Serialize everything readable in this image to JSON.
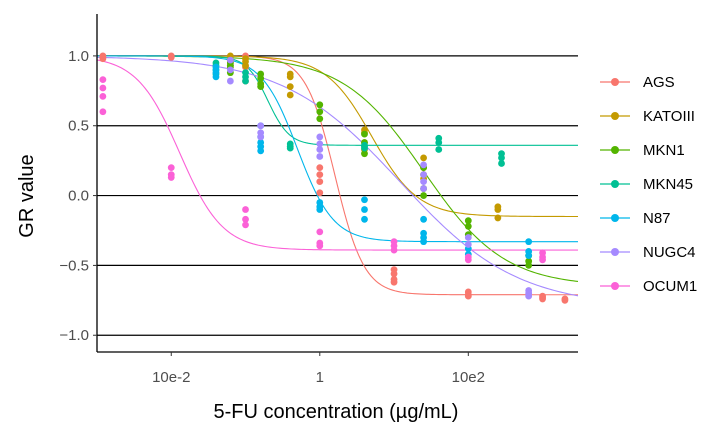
{
  "chart_data": {
    "type": "scatter",
    "xlabel": "5-FU concentration (µg/mL)",
    "ylabel": "GR value",
    "x_scale": "log10",
    "xlim": [
      0.001,
      3000
    ],
    "ylim": [
      -1.12,
      1.3
    ],
    "x_ticks": [
      {
        "value": 0.01,
        "label": "10e-2"
      },
      {
        "value": 1,
        "label": "1"
      },
      {
        "value": 100,
        "label": "10e2"
      }
    ],
    "y_ticks": [
      {
        "value": 1,
        "label": "1.0"
      },
      {
        "value": 0.5,
        "label": "0.5"
      },
      {
        "value": 0,
        "label": "0.0"
      },
      {
        "value": -0.5,
        "label": "−0.5"
      },
      {
        "value": -1,
        "label": "−1.0"
      }
    ],
    "hlines": [
      1,
      0.5,
      0,
      -0.5,
      -1
    ],
    "legend_position": "right",
    "series": [
      {
        "name": "AGS",
        "color": "#F8766D",
        "fit": {
          "ginf": -0.71,
          "gec50": 1.6,
          "h": 2.2
        },
        "points": [
          [
            0.0012,
            1.0
          ],
          [
            0.0012,
            0.99
          ],
          [
            0.0012,
            0.98
          ],
          [
            0.01,
            1.0
          ],
          [
            0.01,
            0.99
          ],
          [
            0.0625,
            0.97
          ],
          [
            0.0625,
            0.96
          ],
          [
            0.0625,
            0.95
          ],
          [
            0.1,
            1.0
          ],
          [
            0.1,
            0.92
          ],
          [
            0.1,
            0.82
          ],
          [
            1,
            0.2
          ],
          [
            1,
            0.15
          ],
          [
            1,
            0.1
          ],
          [
            1,
            0.02
          ],
          [
            10,
            -0.53
          ],
          [
            10,
            -0.56
          ],
          [
            10,
            -0.6
          ],
          [
            10,
            -0.62
          ],
          [
            100,
            -0.69
          ],
          [
            100,
            -0.71
          ],
          [
            100,
            -0.72
          ],
          [
            1000,
            -0.72
          ],
          [
            1000,
            -0.73
          ],
          [
            1000,
            -0.74
          ],
          [
            2000,
            -0.74
          ],
          [
            2000,
            -0.75
          ]
        ]
      },
      {
        "name": "KATOIII",
        "color": "#C49A00",
        "fit": {
          "ginf": -0.15,
          "gec50": 5,
          "h": 1.4
        },
        "points": [
          [
            0.0625,
            1.0
          ],
          [
            0.0625,
            0.97
          ],
          [
            0.0625,
            0.93
          ],
          [
            0.1,
            0.98
          ],
          [
            0.1,
            0.96
          ],
          [
            0.1,
            0.93
          ],
          [
            0.4,
            0.87
          ],
          [
            0.4,
            0.85
          ],
          [
            0.4,
            0.78
          ],
          [
            0.4,
            0.72
          ],
          [
            4,
            0.47
          ],
          [
            4,
            0.45
          ],
          [
            4,
            0.38
          ],
          [
            4,
            0.33
          ],
          [
            25,
            0.27
          ],
          [
            25,
            0.2
          ],
          [
            25,
            0.15
          ],
          [
            25,
            0.12
          ],
          [
            250,
            -0.08
          ],
          [
            250,
            -0.1
          ],
          [
            250,
            -0.16
          ]
        ]
      },
      {
        "name": "MKN1",
        "color": "#53B400",
        "fit": {
          "ginf": -0.65,
          "gec50": 25,
          "h": 0.8
        },
        "points": [
          [
            0.0625,
            0.95
          ],
          [
            0.0625,
            0.93
          ],
          [
            0.0625,
            0.92
          ],
          [
            0.0625,
            0.88
          ],
          [
            0.16,
            0.87
          ],
          [
            0.16,
            0.84
          ],
          [
            0.16,
            0.8
          ],
          [
            0.16,
            0.78
          ],
          [
            1,
            0.65
          ],
          [
            1,
            0.6
          ],
          [
            1,
            0.55
          ],
          [
            4,
            0.44
          ],
          [
            4,
            0.38
          ],
          [
            4,
            0.3
          ],
          [
            25,
            0.2
          ],
          [
            25,
            0.05
          ],
          [
            25,
            0.0
          ],
          [
            100,
            -0.18
          ],
          [
            100,
            -0.22
          ],
          [
            100,
            -0.28
          ],
          [
            650,
            -0.43
          ],
          [
            650,
            -0.47
          ],
          [
            650,
            -0.5
          ]
        ]
      },
      {
        "name": "MKN45",
        "color": "#00C094",
        "fit": {
          "ginf": 0.36,
          "gec50": 0.2,
          "h": 3
        },
        "points": [
          [
            0.04,
            0.95
          ],
          [
            0.04,
            0.93
          ],
          [
            0.04,
            0.9
          ],
          [
            0.04,
            0.87
          ],
          [
            0.1,
            0.88
          ],
          [
            0.1,
            0.85
          ],
          [
            0.1,
            0.82
          ],
          [
            0.4,
            0.37
          ],
          [
            0.4,
            0.35
          ],
          [
            0.4,
            0.34
          ],
          [
            4,
            0.36
          ],
          [
            4,
            0.35
          ],
          [
            4,
            0.34
          ],
          [
            40,
            0.41
          ],
          [
            40,
            0.38
          ],
          [
            40,
            0.33
          ],
          [
            280,
            0.3
          ],
          [
            280,
            0.27
          ],
          [
            280,
            0.23
          ]
        ]
      },
      {
        "name": "N87",
        "color": "#00B6EB",
        "fit": {
          "ginf": -0.33,
          "gec50": 0.5,
          "h": 1.8
        },
        "points": [
          [
            0.04,
            0.92
          ],
          [
            0.04,
            0.9
          ],
          [
            0.04,
            0.88
          ],
          [
            0.04,
            0.85
          ],
          [
            0.16,
            0.5
          ],
          [
            0.16,
            0.42
          ],
          [
            0.16,
            0.38
          ],
          [
            0.16,
            0.35
          ],
          [
            0.16,
            0.32
          ],
          [
            1,
            -0.05
          ],
          [
            1,
            -0.08
          ],
          [
            1,
            -0.1
          ],
          [
            4,
            -0.03
          ],
          [
            4,
            -0.1
          ],
          [
            4,
            -0.17
          ],
          [
            25,
            -0.17
          ],
          [
            25,
            -0.27
          ],
          [
            25,
            -0.3
          ],
          [
            25,
            -0.33
          ],
          [
            100,
            -0.38
          ],
          [
            100,
            -0.42
          ],
          [
            650,
            -0.33
          ],
          [
            650,
            -0.4
          ],
          [
            650,
            -0.43
          ]
        ]
      },
      {
        "name": "NUGC4",
        "color": "#A58AFF",
        "fit": {
          "ginf": -0.8,
          "gec50": 12,
          "h": 0.55
        },
        "points": [
          [
            0.0625,
            0.97
          ],
          [
            0.0625,
            0.9
          ],
          [
            0.0625,
            0.82
          ],
          [
            0.16,
            0.5
          ],
          [
            0.16,
            0.45
          ],
          [
            0.16,
            0.42
          ],
          [
            1,
            0.42
          ],
          [
            1,
            0.37
          ],
          [
            1,
            0.33
          ],
          [
            1,
            0.28
          ],
          [
            25,
            0.22
          ],
          [
            25,
            0.15
          ],
          [
            25,
            0.1
          ],
          [
            25,
            0.05
          ],
          [
            100,
            -0.3
          ],
          [
            100,
            -0.35
          ],
          [
            650,
            -0.68
          ],
          [
            650,
            -0.7
          ],
          [
            650,
            -0.72
          ]
        ]
      },
      {
        "name": "OCUM1",
        "color": "#FB61D7",
        "fit": {
          "ginf": -0.39,
          "gec50": 0.013,
          "h": 1.5
        },
        "points": [
          [
            0.0012,
            0.83
          ],
          [
            0.0012,
            0.77
          ],
          [
            0.0012,
            0.71
          ],
          [
            0.0012,
            0.6
          ],
          [
            0.01,
            0.2
          ],
          [
            0.01,
            0.15
          ],
          [
            0.01,
            0.13
          ],
          [
            0.1,
            -0.1
          ],
          [
            0.1,
            -0.17
          ],
          [
            0.1,
            -0.21
          ],
          [
            1,
            -0.26
          ],
          [
            1,
            -0.34
          ],
          [
            1,
            -0.36
          ],
          [
            10,
            -0.33
          ],
          [
            10,
            -0.36
          ],
          [
            10,
            -0.39
          ],
          [
            100,
            -0.44
          ],
          [
            100,
            -0.46
          ],
          [
            1000,
            -0.41
          ],
          [
            1000,
            -0.44
          ],
          [
            1000,
            -0.46
          ]
        ]
      }
    ]
  }
}
